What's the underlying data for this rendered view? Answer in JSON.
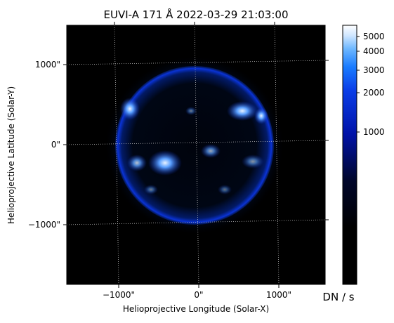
{
  "figure": {
    "title": "EUVI-A 171 Å 2022-03-29 21:03:00",
    "x_axis": {
      "label": "Helioprojective Longitude (Solar-X)",
      "ticks": [
        "−1000\"",
        "0\"",
        "1000\""
      ]
    },
    "y_axis": {
      "label": "Helioprojective Latitude (Solar-Y)",
      "ticks": [
        "1000\"",
        "0\"",
        "−1000\""
      ]
    },
    "colorbar": {
      "label": "DN / s",
      "ticks": [
        "5000",
        "4000",
        "3000",
        "2000",
        "1000"
      ],
      "tick_values": [
        5000,
        4000,
        3000,
        2000,
        1000
      ]
    },
    "colors": {
      "background": "#000000",
      "disk_dark": "#00040f",
      "limb_blue": "#0a33d6",
      "active_region": "#bfd8ff"
    }
  }
}
